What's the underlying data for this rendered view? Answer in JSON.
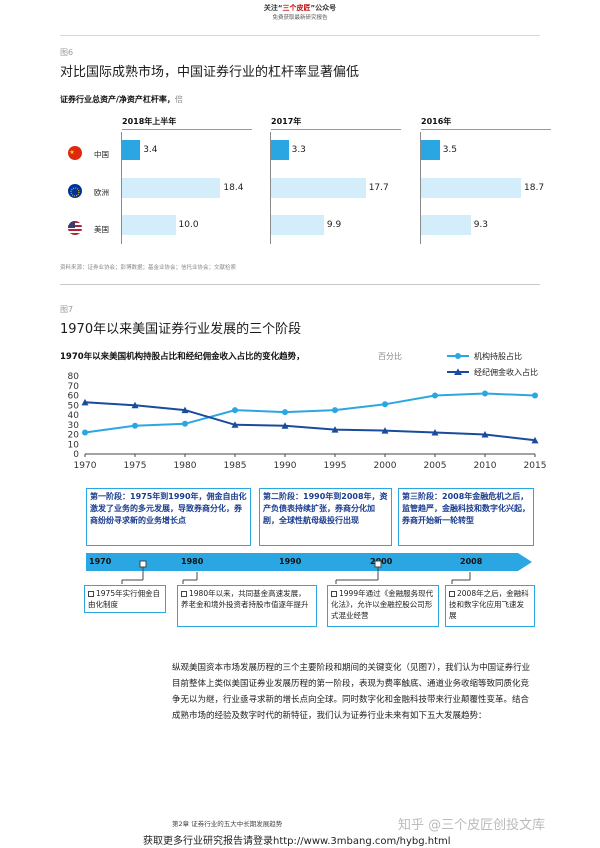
{
  "header": {
    "line1_prefix": "关注“",
    "line1_highlight": "三个皮匠",
    "line1_suffix": "”公众号",
    "line2": "免费获取最新研究报告"
  },
  "figure6": {
    "label": "图6",
    "title": "对比国际成熟市场，中国证券行业的杠杆率显著偏低",
    "subtitle": "证券行业总资产/净资产杠杆率，",
    "unit": "倍",
    "periods": [
      "2018年上半年",
      "2017年",
      "2016年"
    ],
    "countries": [
      {
        "name": "中国",
        "icon": "china-flag-icon",
        "values": [
          3.4,
          3.3,
          3.5
        ]
      },
      {
        "name": "欧洲",
        "icon": "eu-flag-icon",
        "values": [
          18.4,
          17.7,
          18.7
        ]
      },
      {
        "name": "美国",
        "icon": "us-flag-icon",
        "values": [
          10.0,
          9.9,
          9.3
        ]
      }
    ],
    "value_labels": [
      [
        "3.4",
        "3.3",
        "3.5"
      ],
      [
        "18.4",
        "17.7",
        "18.7"
      ],
      [
        "10.0",
        "9.9",
        "9.3"
      ]
    ],
    "source": "资料来源：证券业协会；彭博数据；基金业协会；信托业协会；文献检索",
    "colors": {
      "china": "#2aa7e3",
      "other": "#d3edfa"
    }
  },
  "figure7": {
    "label": "图7",
    "title": "1970年以来美国证券行业发展的三个阶段",
    "chart_title": "1970年以来美国机构持股占比和经纪佣金收入占比的变化趋势，",
    "chart_unit": "百分比",
    "stages": [
      "第一阶段：1975年到1990年，佣金自由化激发了业务的多元发展，导致券商分化，券商纷纷寻求新的业务增长点",
      "第二阶段：1990年到2008年，资产负债表持续扩张，券商分化加剧，全球性航母级投行出现",
      "第三阶段：2008年金融危机之后，监管趋严，金融科技和数字化兴起，券商开始新一轮转型"
    ],
    "timeline_years": [
      "1970",
      "1980",
      "1990",
      "2000",
      "2008"
    ],
    "events": [
      "1975年实行佣金自由化制度",
      "1980年以来，共同基金高速发展，养老金和境外投资者持股市值逐年提升",
      "1999年通过《金融服务现代化法》，允许以金融控股公司形式混业经营",
      "2008年之后，金融科技和数字化应用飞速发展"
    ]
  },
  "chart_data": {
    "type": "line",
    "title": "1970年以来美国机构持股占比和经纪佣金收入占比的变化趋势，",
    "ylabel": "百分比",
    "xlabel": "",
    "x": [
      1970,
      1975,
      1980,
      1985,
      1990,
      1995,
      2000,
      2005,
      2010,
      2015
    ],
    "xticks": [
      "1970",
      "1975",
      "1980",
      "1985",
      "1990",
      "1995",
      "2000",
      "2005",
      "2010",
      "2015"
    ],
    "yticks": [
      "0",
      "10",
      "20",
      "30",
      "40",
      "50",
      "60",
      "70",
      "80"
    ],
    "ylim": [
      0,
      80
    ],
    "grid": false,
    "legend": "top-right",
    "series": [
      {
        "name": "机构持股占比",
        "color": "#2aa7e3",
        "marker": "circle",
        "values": [
          22,
          29,
          31,
          45,
          43,
          45,
          51,
          60,
          62,
          60
        ]
      },
      {
        "name": "经纪佣金收入占比",
        "color": "#1a4b9c",
        "marker": "triangle",
        "values": [
          53,
          50,
          45,
          30,
          29,
          25,
          24,
          22,
          20,
          14
        ]
      }
    ]
  },
  "body": {
    "paragraph": "纵观美国资本市场发展历程的三个主要阶段和期间的关键变化（见图7），我们认为中国证券行业目前整体上类似美国证券业发展历程的第一阶段，表现为费率触底、通道业务收缩等致同质化竞争无以为继，行业亟寻求新的增长点向全球。同时数字化和金融科技带来行业颠覆性变革。结合成熟市场的经验及数字时代的新特征，我们认为证券行业未来有如下五大发展趋势："
  },
  "footer": {
    "chapter": "第2章 证券行业的五大中长期发展趋势",
    "download": "获取更多行业研究报告请登录http://www.3mbang.com/hybg.html",
    "watermark": "知乎 @三个皮匠创投文库"
  }
}
